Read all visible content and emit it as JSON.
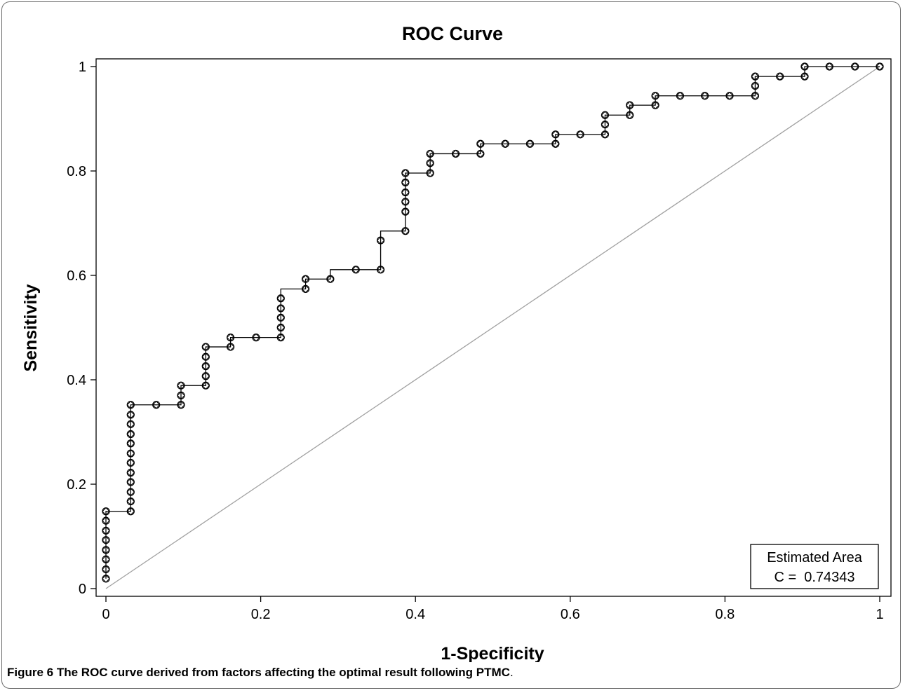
{
  "caption": {
    "label": "Figure 6",
    "text": "The ROC curve derived from factors affecting the optimal result following PTMC",
    "end": "."
  },
  "chart_data": {
    "type": "line",
    "title": "ROC Curve",
    "xlabel": "1-Specificity",
    "ylabel": "Sensitivity",
    "xlim": [
      0,
      1
    ],
    "ylim": [
      0,
      1
    ],
    "xticks": [
      0,
      0.2,
      0.4,
      0.6,
      0.8,
      1
    ],
    "yticks": [
      0,
      0.2,
      0.4,
      0.6,
      0.8,
      1
    ],
    "grid": false,
    "reference_line": [
      [
        0,
        0
      ],
      [
        1,
        1
      ]
    ],
    "annotation": {
      "line1": "Estimated Area",
      "line2": "C =  0.74343",
      "position": "bottom-right"
    },
    "series": [
      {
        "points": [
          [
            0,
            0.019
          ],
          [
            0,
            0.037
          ],
          [
            0,
            0.056
          ],
          [
            0,
            0.074
          ],
          [
            0,
            0.093
          ],
          [
            0,
            0.111
          ],
          [
            0,
            0.13
          ],
          [
            0,
            0.148
          ],
          [
            0.032,
            0.148
          ],
          [
            0.032,
            0.167
          ],
          [
            0.032,
            0.185
          ],
          [
            0.032,
            0.204
          ],
          [
            0.032,
            0.222
          ],
          [
            0.032,
            0.241
          ],
          [
            0.032,
            0.259
          ],
          [
            0.032,
            0.278
          ],
          [
            0.032,
            0.296
          ],
          [
            0.032,
            0.315
          ],
          [
            0.032,
            0.333
          ],
          [
            0.032,
            0.352
          ],
          [
            0.065,
            0.352
          ],
          [
            0.097,
            0.352
          ],
          [
            0.097,
            0.37
          ],
          [
            0.097,
            0.389
          ],
          [
            0.129,
            0.389
          ],
          [
            0.129,
            0.407
          ],
          [
            0.129,
            0.426
          ],
          [
            0.129,
            0.444
          ],
          [
            0.129,
            0.463
          ],
          [
            0.161,
            0.463
          ],
          [
            0.161,
            0.481
          ],
          [
            0.194,
            0.481
          ],
          [
            0.226,
            0.481
          ],
          [
            0.226,
            0.5
          ],
          [
            0.226,
            0.519
          ],
          [
            0.226,
            0.537
          ],
          [
            0.226,
            0.556
          ],
          [
            0.258,
            0.574
          ],
          [
            0.258,
            0.593
          ],
          [
            0.29,
            0.593
          ],
          [
            0.323,
            0.611
          ],
          [
            0.355,
            0.611
          ],
          [
            0.355,
            0.667
          ],
          [
            0.387,
            0.685
          ],
          [
            0.387,
            0.722
          ],
          [
            0.387,
            0.741
          ],
          [
            0.387,
            0.759
          ],
          [
            0.387,
            0.778
          ],
          [
            0.387,
            0.796
          ],
          [
            0.419,
            0.796
          ],
          [
            0.419,
            0.815
          ],
          [
            0.419,
            0.833
          ],
          [
            0.452,
            0.833
          ],
          [
            0.484,
            0.833
          ],
          [
            0.484,
            0.852
          ],
          [
            0.516,
            0.852
          ],
          [
            0.548,
            0.852
          ],
          [
            0.581,
            0.852
          ],
          [
            0.581,
            0.87
          ],
          [
            0.613,
            0.87
          ],
          [
            0.645,
            0.87
          ],
          [
            0.645,
            0.889
          ],
          [
            0.645,
            0.907
          ],
          [
            0.677,
            0.907
          ],
          [
            0.677,
            0.926
          ],
          [
            0.71,
            0.926
          ],
          [
            0.71,
            0.944
          ],
          [
            0.742,
            0.944
          ],
          [
            0.774,
            0.944
          ],
          [
            0.806,
            0.944
          ],
          [
            0.839,
            0.944
          ],
          [
            0.839,
            0.963
          ],
          [
            0.839,
            0.981
          ],
          [
            0.871,
            0.981
          ],
          [
            0.903,
            0.981
          ],
          [
            0.903,
            1.0
          ],
          [
            0.935,
            1.0
          ],
          [
            0.968,
            1.0
          ],
          [
            1.0,
            1.0
          ]
        ]
      }
    ]
  }
}
